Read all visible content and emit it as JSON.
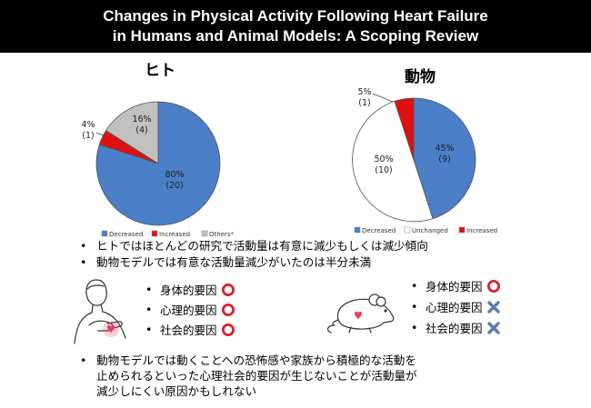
{
  "title": {
    "line1": "Changes in Physical Activity Following Heart Failure",
    "line2": "in Humans and Animal Models: A Scoping Review"
  },
  "colors": {
    "decreased": "#4a7fc8",
    "increased": "#e01010",
    "others": "#c0c0c0",
    "unchanged": "#ffffff",
    "circle": "#d9202c",
    "cross": "#5b7bb5",
    "header_bg": "#000000"
  },
  "chart_data": [
    {
      "type": "pie",
      "title": "ヒト",
      "slices": [
        {
          "name": "Decreased",
          "value": 20,
          "percent": "80%",
          "count": "(20)",
          "color": "#4a7fc8"
        },
        {
          "name": "Increased",
          "value": 1,
          "percent": "4%",
          "count": "(1)",
          "color": "#e01010"
        },
        {
          "name": "Others*",
          "value": 4,
          "percent": "16%",
          "count": "(4)",
          "color": "#c0c0c0"
        }
      ],
      "legend_position": "bottom"
    },
    {
      "type": "pie",
      "title": "動物",
      "slices": [
        {
          "name": "Decreased",
          "value": 9,
          "percent": "45%",
          "count": "(9)",
          "color": "#4a7fc8"
        },
        {
          "name": "Unchanged",
          "value": 10,
          "percent": "50%",
          "count": "(10)",
          "color": "#ffffff"
        },
        {
          "name": "Increased",
          "value": 1,
          "percent": "5%",
          "count": "(1)",
          "color": "#e01010"
        }
      ],
      "legend_position": "bottom"
    }
  ],
  "bullets": {
    "b1": "ヒトではほとんどの研究で活動量は有意に減少もしくは減少傾向",
    "b2": "動物モデルでは有意な活動量減少がいたのは半分未満",
    "b3_line1": "動物モデルでは動くことへの恐怖感や家族から積極的な活動を",
    "b3_line2": "止められるといった心理社会的要因が生じないことが活動量が",
    "b3_line3": "減少しにくい原因かもしれない"
  },
  "factors": {
    "human": [
      {
        "label": "身体的要因",
        "mark": "circle"
      },
      {
        "label": "心理的要因",
        "mark": "circle"
      },
      {
        "label": "社会的要因",
        "mark": "circle"
      }
    ],
    "animal": [
      {
        "label": "身体的要因",
        "mark": "circle"
      },
      {
        "label": "心理的要因",
        "mark": "cross"
      },
      {
        "label": "社会的要因",
        "mark": "cross"
      }
    ]
  },
  "icons": [
    "person-chest-pain-icon",
    "mouse-heart-icon"
  ]
}
